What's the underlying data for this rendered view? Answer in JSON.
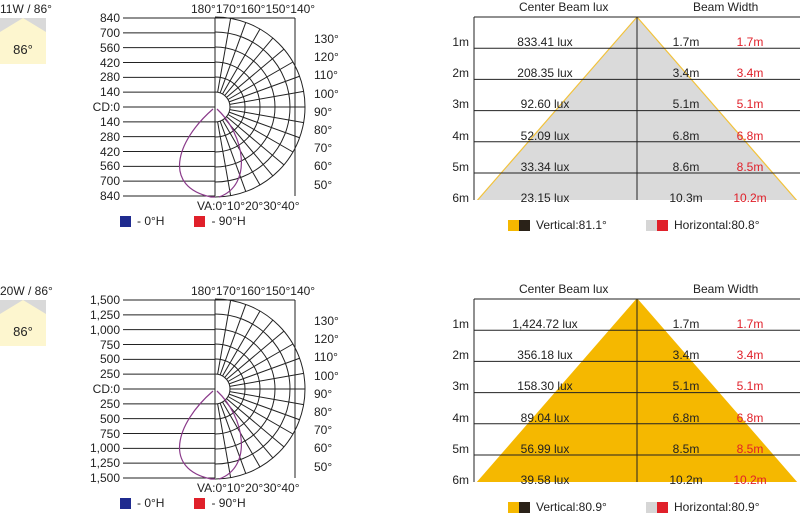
{
  "panels": [
    {
      "title": "11W / 86°",
      "beam_icon_label": "86°",
      "intensity_labels": [
        "840",
        "700",
        "560",
        "420",
        "280",
        "140",
        "CD:0",
        "140",
        "280",
        "420",
        "560",
        "700",
        "840"
      ],
      "top_angles": "180°170°160°150°140°",
      "side_angles": [
        "130°",
        "120°",
        "110°",
        "100°",
        "90°",
        "80°",
        "70°",
        "60°",
        "50°"
      ],
      "bottom_angles": "VA:0°10°20°30°40°",
      "legend": {
        "h0": "- 0°H",
        "h90": "- 90°H"
      },
      "table": {
        "header_lux": "Center Beam lux",
        "header_width": "Beam Width",
        "fill": "#dadada",
        "edge": "#f2c23a",
        "rows": [
          {
            "distance": "1m",
            "lux": "833.41 lux",
            "width_v": "1.7m",
            "width_h": "1.7m"
          },
          {
            "distance": "2m",
            "lux": "208.35 lux",
            "width_v": "3.4m",
            "width_h": "3.4m"
          },
          {
            "distance": "3m",
            "lux": "92.60 lux",
            "width_v": "5.1m",
            "width_h": "5.1m"
          },
          {
            "distance": "4m",
            "lux": "52.09 lux",
            "width_v": "6.8m",
            "width_h": "6.8m"
          },
          {
            "distance": "5m",
            "lux": "33.34 lux",
            "width_v": "8.6m",
            "width_h": "8.5m"
          },
          {
            "distance": "6m",
            "lux": "23.15 lux",
            "width_v": "10.3m",
            "width_h": "10.2m"
          }
        ],
        "vertical": "Vertical:81.1°",
        "horizontal": "Horizontal:80.8°"
      }
    },
    {
      "title": "20W / 86°",
      "beam_icon_label": "86°",
      "intensity_labels": [
        "1,500",
        "1,250",
        "1,000",
        "750",
        "500",
        "250",
        "CD:0",
        "250",
        "500",
        "750",
        "1,000",
        "1,250",
        "1,500"
      ],
      "top_angles": "180°170°160°150°140°",
      "side_angles": [
        "130°",
        "120°",
        "110°",
        "100°",
        "90°",
        "80°",
        "70°",
        "60°",
        "50°"
      ],
      "bottom_angles": "VA:0°10°20°30°40°",
      "legend": {
        "h0": "- 0°H",
        "h90": "- 90°H"
      },
      "table": {
        "header_lux": "Center Beam lux",
        "header_width": "Beam Width",
        "fill": "#f5b800",
        "edge": "#f5b800",
        "rows": [
          {
            "distance": "1m",
            "lux": "1,424.72 lux",
            "width_v": "1.7m",
            "width_h": "1.7m"
          },
          {
            "distance": "2m",
            "lux": "356.18 lux",
            "width_v": "3.4m",
            "width_h": "3.4m"
          },
          {
            "distance": "3m",
            "lux": "158.30 lux",
            "width_v": "5.1m",
            "width_h": "5.1m"
          },
          {
            "distance": "4m",
            "lux": "89.04 lux",
            "width_v": "6.8m",
            "width_h": "6.8m"
          },
          {
            "distance": "5m",
            "lux": "56.99 lux",
            "width_v": "8.5m",
            "width_h": "8.5m"
          },
          {
            "distance": "6m",
            "lux": "39.58 lux",
            "width_v": "10.2m",
            "width_h": "10.2m"
          }
        ],
        "vertical": "Vertical:80.9°",
        "horizontal": "Horizontal:80.9°"
      }
    }
  ],
  "colors": {
    "h0": "#1f2b8f",
    "h90": "#e0202a",
    "curve": "#8a3a8a",
    "dark": "#2a2218",
    "yellow": "#f5b800",
    "gray": "#d6d6d6"
  }
}
